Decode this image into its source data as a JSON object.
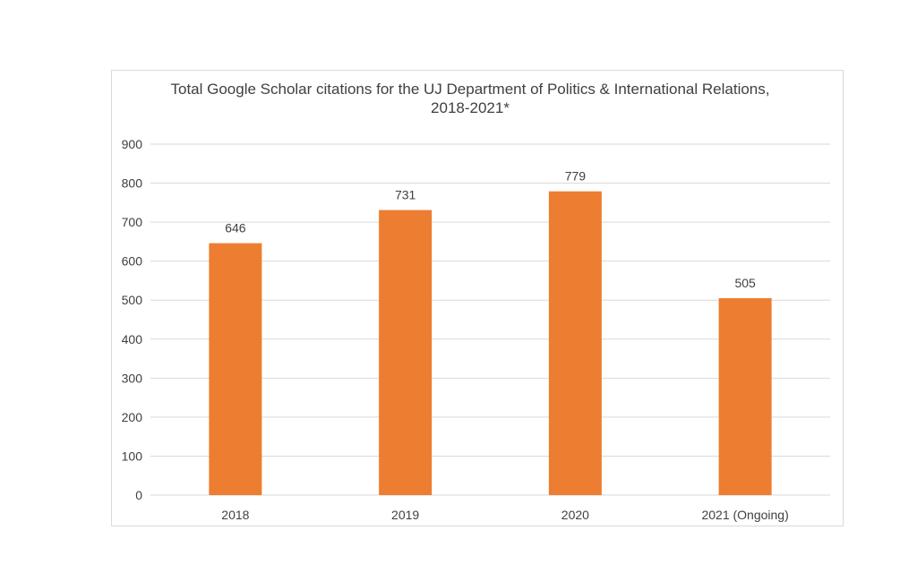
{
  "chart_data": {
    "type": "bar",
    "title_line1": "Total Google Scholar citations for the UJ Department of Politics & International Relations,",
    "title_line2": "2018-2021*",
    "categories": [
      "2018",
      "2019",
      "2020",
      "2021 (Ongoing)"
    ],
    "values": [
      646,
      731,
      779,
      505
    ],
    "data_labels": [
      "646",
      "731",
      "779",
      "505"
    ],
    "ylim": [
      0,
      900
    ],
    "yticks": [
      0,
      100,
      200,
      300,
      400,
      500,
      600,
      700,
      800,
      900
    ],
    "xlabel": "",
    "ylabel": "",
    "grid": true,
    "legend": "none",
    "bar_color": "#ED7D31",
    "grid_color": "#d9d9d9",
    "text_color": "#404040"
  }
}
